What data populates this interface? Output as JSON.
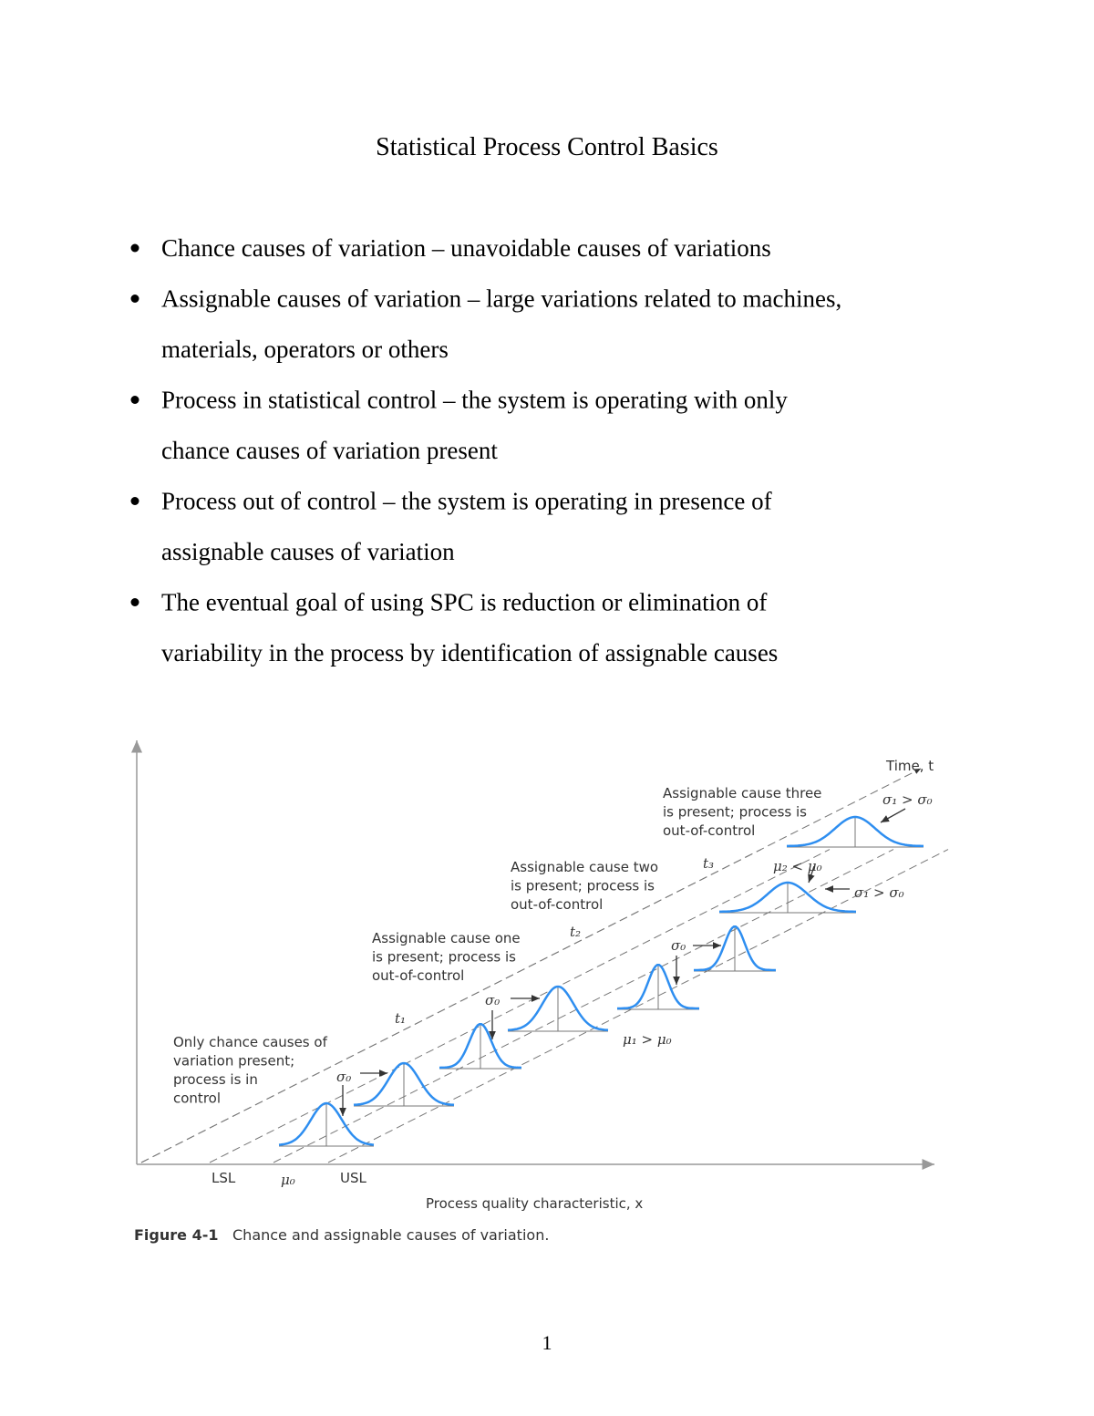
{
  "title": "Statistical Process Control Basics",
  "bullets": [
    [
      "Chance causes of variation – unavoidable causes of variations"
    ],
    [
      "Assignable causes of variation – large variations related to machines,",
      "materials, operators or others"
    ],
    [
      "Process in statistical control – the system is operating with only",
      "chance causes of variation present"
    ],
    [
      "Process out of control – the system is operating in presence of",
      "assignable causes of variation"
    ],
    [
      "The eventual goal of using SPC is reduction or elimination of",
      "variability in the process by identification of assignable causes"
    ]
  ],
  "figure": {
    "time_axis": "Time, t",
    "x_axis": "Process quality characteristic, x",
    "x_labels": [
      "LSL",
      "μ₀",
      "USL"
    ],
    "time_labels": [
      "t₁",
      "t₂",
      "t₃"
    ],
    "annotations": [
      [
        "Only chance causes of",
        "variation present;",
        "process is in",
        "control"
      ],
      [
        "Assignable cause one",
        "is present; process is",
        "out-of-control"
      ],
      [
        "Assignable cause two",
        "is present; process is",
        "out-of-control"
      ],
      [
        "Assignable cause three",
        "is present; process is",
        "out-of-control"
      ]
    ],
    "symbols": [
      "σ₀",
      "σ₀",
      "σ₀",
      "μ₁ > μ₀",
      "σ₁ > σ₀",
      "μ₂ < μ₀",
      "σ₁ > σ₀"
    ],
    "caption": {
      "label": "Figure 4-1",
      "text": "Chance and assignable causes of variation."
    }
  },
  "page_number": "1"
}
